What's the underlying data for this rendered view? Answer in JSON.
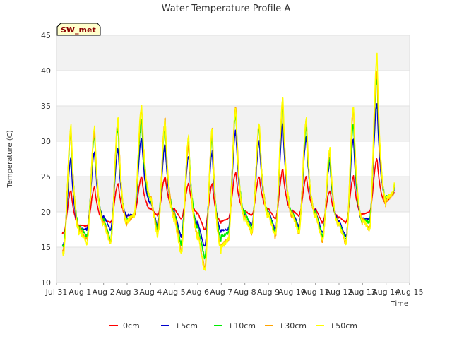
{
  "chart_data": {
    "type": "line",
    "title": "Water Temperature Profile A",
    "site_label": "SW_met",
    "xlabel": "Time",
    "ylabel": "Temperature (C)",
    "ylim": [
      10,
      45
    ],
    "yticks": [
      10,
      15,
      20,
      25,
      30,
      35,
      40,
      45
    ],
    "xlim": [
      0,
      15
    ],
    "xtick_labels": [
      "Jul 31",
      "Aug 1",
      "Aug 2",
      "Aug 3",
      "Aug 4",
      "Aug 5",
      "Aug 6",
      "Aug 7",
      "Aug 8",
      "Aug 9",
      "Aug 10",
      "Aug 11",
      "Aug 12",
      "Aug 13",
      "Aug 14",
      "Aug 15"
    ],
    "grid": "horizontal bands",
    "legend_position": "bottom",
    "x": [
      "Jul 31",
      "Aug 1",
      "Aug 2",
      "Aug 3",
      "Aug 4",
      "Aug 5",
      "Aug 6",
      "Aug 7",
      "Aug 8",
      "Aug 9",
      "Aug 10",
      "Aug 11",
      "Aug 12",
      "Aug 13",
      "Aug 14"
    ],
    "series": [
      {
        "name": "0cm",
        "color": "#ff0000",
        "min": [
          17.0,
          18.0,
          18.5,
          19.5,
          19.5,
          19.0,
          17.5,
          19.0,
          19.5,
          19.0,
          19.5,
          18.5,
          18.5,
          20.0,
          22.5
        ],
        "max": [
          23.0,
          23.5,
          24.0,
          25.0,
          25.0,
          24.0,
          24.0,
          25.5,
          25.0,
          26.0,
          25.0,
          23.0,
          25.0,
          27.5,
          27.5
        ]
      },
      {
        "name": "+5cm",
        "color": "#0000cc",
        "min": [
          15.5,
          17.5,
          17.5,
          19.5,
          18.0,
          16.5,
          15.0,
          17.5,
          18.0,
          17.5,
          18.0,
          17.0,
          16.5,
          19.0,
          22.5
        ],
        "max": [
          27.5,
          28.5,
          29.0,
          30.5,
          29.5,
          28.0,
          28.5,
          31.5,
          30.0,
          32.5,
          30.5,
          27.0,
          30.5,
          35.5,
          35.5
        ]
      },
      {
        "name": "+10cm",
        "color": "#00ee00",
        "min": [
          15.0,
          16.5,
          16.0,
          19.5,
          17.5,
          15.5,
          13.5,
          17.0,
          17.5,
          17.0,
          17.5,
          16.5,
          16.0,
          18.5,
          22.5
        ],
        "max": [
          31.0,
          31.0,
          32.0,
          33.0,
          32.0,
          30.0,
          30.5,
          34.0,
          32.0,
          35.0,
          32.0,
          27.5,
          32.5,
          39.0,
          39.0
        ]
      },
      {
        "name": "+30cm",
        "color": "#ffa500",
        "min": [
          14.5,
          16.0,
          15.5,
          19.5,
          17.0,
          14.5,
          12.0,
          16.0,
          17.0,
          16.5,
          17.0,
          16.0,
          15.5,
          17.5,
          22.5
        ],
        "max": [
          31.5,
          31.5,
          33.0,
          34.5,
          33.0,
          29.5,
          31.5,
          35.0,
          32.5,
          35.5,
          33.0,
          28.5,
          34.5,
          40.0,
          40.0
        ]
      },
      {
        "name": "+50cm",
        "color": "#ffff00",
        "min": [
          14.0,
          15.5,
          15.5,
          19.5,
          16.5,
          14.0,
          11.5,
          16.0,
          17.0,
          16.5,
          17.0,
          16.0,
          15.5,
          17.5,
          22.5
        ],
        "max": [
          32.0,
          32.0,
          33.0,
          35.0,
          33.0,
          30.5,
          31.5,
          34.5,
          32.5,
          36.0,
          33.0,
          29.0,
          35.0,
          42.0,
          42.0
        ]
      }
    ]
  }
}
